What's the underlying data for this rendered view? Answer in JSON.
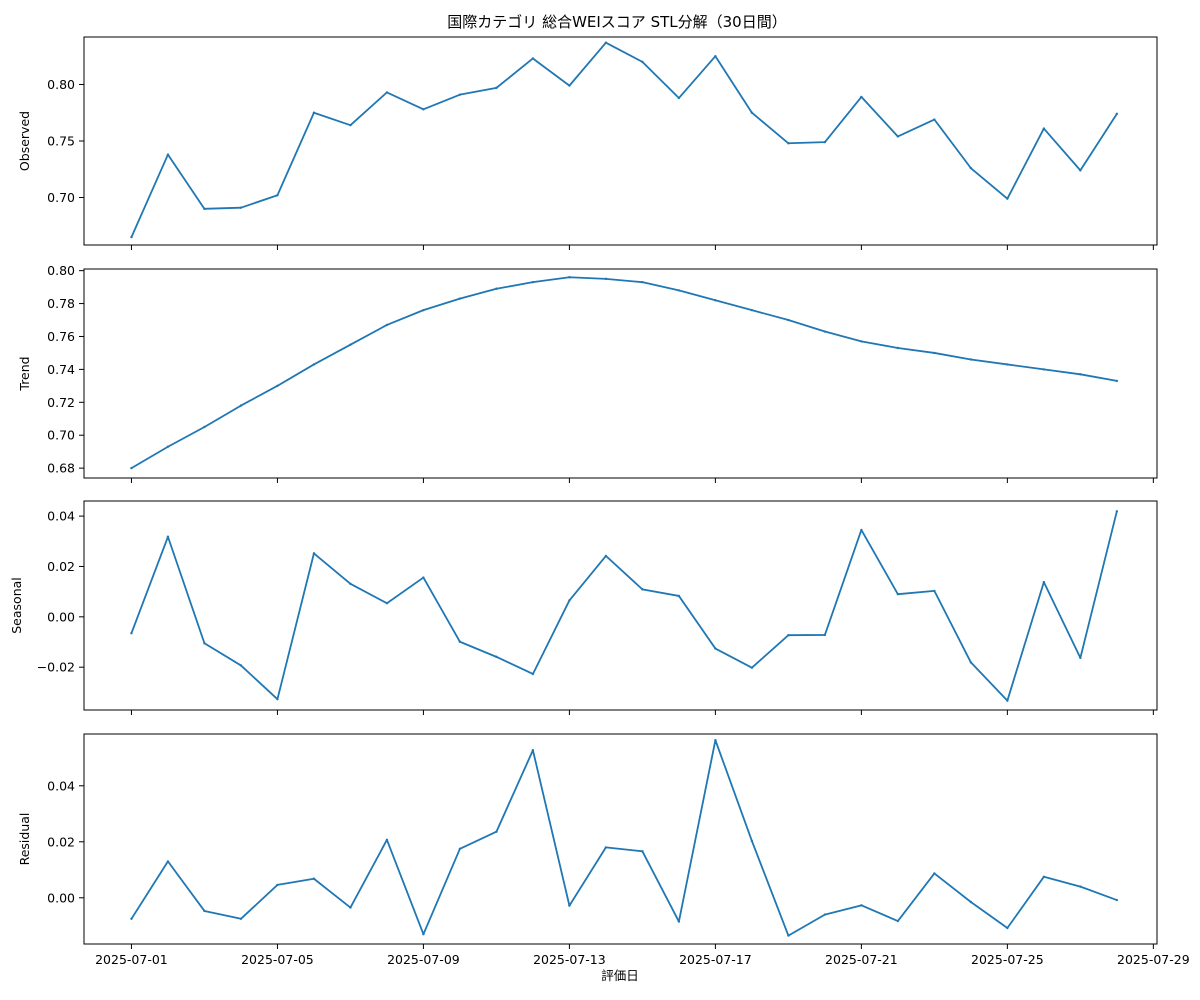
{
  "chart_data": {
    "type": "line",
    "title": "国際カテゴリ 総合WEIスコア STL分解（30日間）",
    "xlabel": "評価日",
    "x": [
      "2025-07-01",
      "2025-07-02",
      "2025-07-03",
      "2025-07-04",
      "2025-07-05",
      "2025-07-06",
      "2025-07-07",
      "2025-07-08",
      "2025-07-09",
      "2025-07-10",
      "2025-07-11",
      "2025-07-12",
      "2025-07-13",
      "2025-07-14",
      "2025-07-15",
      "2025-07-16",
      "2025-07-17",
      "2025-07-18",
      "2025-07-19",
      "2025-07-20",
      "2025-07-21",
      "2025-07-22",
      "2025-07-23",
      "2025-07-24",
      "2025-07-25",
      "2025-07-26",
      "2025-07-27",
      "2025-07-28"
    ],
    "xlim": [
      "2025-06-29.7",
      "2025-07-29.1"
    ],
    "x_ticks": [
      "2025-07-01",
      "2025-07-05",
      "2025-07-09",
      "2025-07-13",
      "2025-07-17",
      "2025-07-21",
      "2025-07-25",
      "2025-07-29"
    ],
    "line_color": "#1f77b4",
    "panels": [
      {
        "ylabel": "Observed",
        "ylim": [
          0.658,
          0.842
        ],
        "yticks": [
          0.7,
          0.75,
          0.8
        ],
        "ytick_labels": [
          "0.70",
          "0.75",
          "0.80"
        ],
        "values": [
          0.665,
          0.738,
          0.69,
          0.691,
          0.702,
          0.775,
          0.764,
          0.793,
          0.778,
          0.791,
          0.797,
          0.823,
          0.799,
          0.837,
          0.82,
          0.788,
          0.825,
          0.775,
          0.748,
          0.749,
          0.789,
          0.754,
          0.769,
          0.726,
          0.699,
          0.761,
          0.724,
          0.774
        ]
      },
      {
        "ylabel": "Trend",
        "ylim": [
          0.674,
          0.801
        ],
        "yticks": [
          0.68,
          0.7,
          0.72,
          0.74,
          0.76,
          0.78,
          0.8
        ],
        "ytick_labels": [
          "0.68",
          "0.70",
          "0.72",
          "0.74",
          "0.76",
          "0.78",
          "0.80"
        ],
        "values": [
          0.68,
          0.693,
          0.705,
          0.718,
          0.73,
          0.743,
          0.755,
          0.767,
          0.776,
          0.783,
          0.789,
          0.793,
          0.796,
          0.795,
          0.793,
          0.788,
          0.782,
          0.776,
          0.77,
          0.763,
          0.757,
          0.753,
          0.75,
          0.746,
          0.743,
          0.74,
          0.737,
          0.733
        ]
      },
      {
        "ylabel": "Seasonal",
        "ylim": [
          -0.037,
          0.046
        ],
        "yticks": [
          -0.02,
          0.0,
          0.02,
          0.04
        ],
        "ytick_labels": [
          "−0.02",
          "0.00",
          "0.02",
          "0.04"
        ],
        "values": [
          -0.0065,
          0.0318,
          -0.0105,
          -0.0193,
          -0.0327,
          0.0252,
          0.0131,
          0.0054,
          0.0156,
          -0.0099,
          -0.0159,
          -0.0227,
          0.0065,
          0.0242,
          0.0109,
          0.0083,
          -0.0126,
          -0.0202,
          -0.0073,
          -0.0072,
          0.0345,
          0.009,
          0.0103,
          -0.0181,
          -0.0333,
          0.0138,
          -0.0163,
          0.0419
        ]
      },
      {
        "ylabel": "Residual",
        "ylim": [
          -0.0165,
          0.0585
        ],
        "yticks": [
          0.0,
          0.02,
          0.04
        ],
        "ytick_labels": [
          "0.00",
          "0.02",
          "0.04"
        ],
        "values": [
          -0.0075,
          0.013,
          -0.0047,
          -0.0075,
          0.0046,
          0.0068,
          -0.0035,
          0.0207,
          -0.013,
          0.0175,
          0.0236,
          0.0527,
          -0.0028,
          0.018,
          0.0166,
          -0.0085,
          0.0563,
          0.0203,
          -0.0135,
          -0.006,
          -0.0027,
          -0.0083,
          0.0087,
          -0.0015,
          -0.0108,
          0.0075,
          0.004,
          -0.0008
        ]
      }
    ]
  }
}
